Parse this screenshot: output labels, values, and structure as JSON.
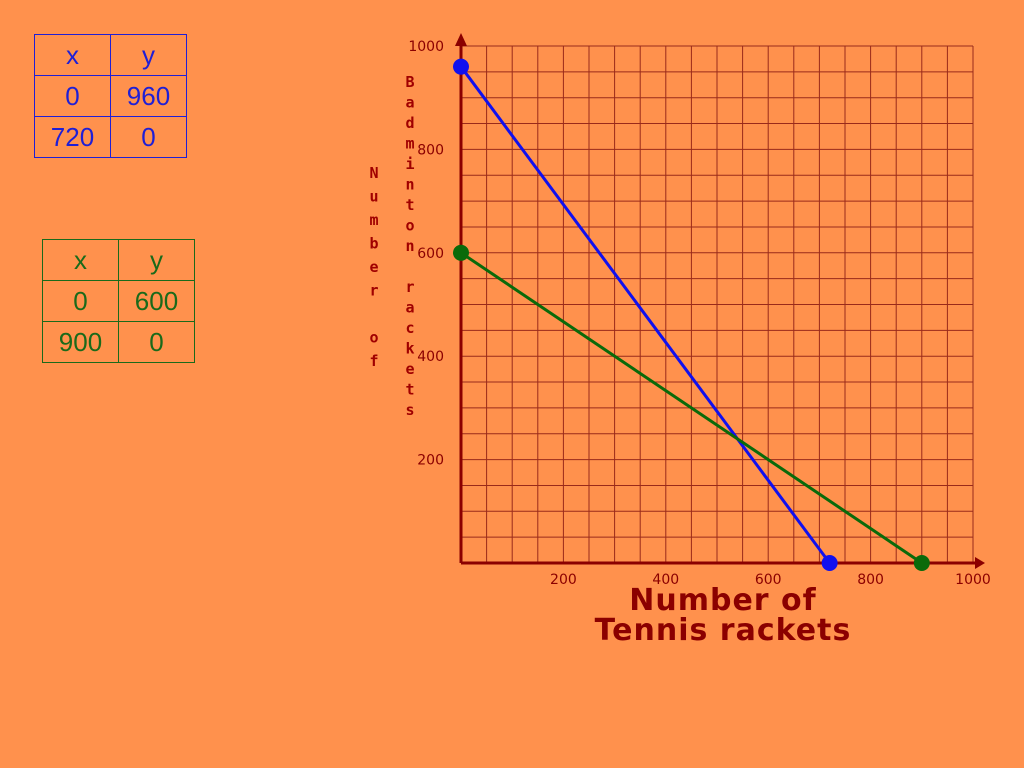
{
  "tables": [
    {
      "header": [
        "x",
        "y"
      ],
      "rows": [
        [
          "0",
          "960"
        ],
        [
          "720",
          "0"
        ]
      ],
      "color": "#1f1fd6"
    },
    {
      "header": [
        "x",
        "y"
      ],
      "rows": [
        [
          "0",
          "600"
        ],
        [
          "900",
          "0"
        ]
      ],
      "color": "#1a6a1a"
    }
  ],
  "chart_data": {
    "type": "line",
    "xlim": [
      0,
      1000
    ],
    "ylim": [
      0,
      1000
    ],
    "grid": true,
    "x_ticks": [
      200,
      400,
      600,
      800,
      1000
    ],
    "y_ticks": [
      200,
      400,
      600,
      800,
      1000
    ],
    "xlabel_lines": [
      "Number of",
      "Tennis rackets"
    ],
    "ylabel_columns": [
      "Number of",
      "Badminton rackets"
    ],
    "series": [
      {
        "color": "#1010EE",
        "points": [
          [
            0,
            960
          ],
          [
            720,
            0
          ]
        ]
      },
      {
        "color": "#0A6A0A",
        "points": [
          [
            0,
            600
          ],
          [
            900,
            0
          ]
        ]
      }
    ]
  }
}
